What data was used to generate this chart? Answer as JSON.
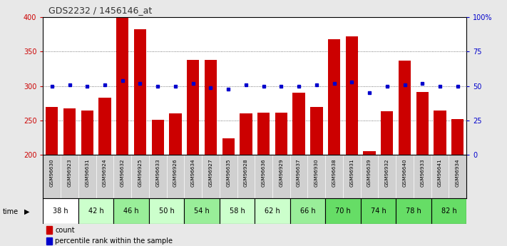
{
  "title": "GDS2232 / 1456146_at",
  "samples": [
    "GSM96630",
    "GSM96923",
    "GSM96631",
    "GSM96924",
    "GSM96632",
    "GSM96925",
    "GSM96633",
    "GSM96926",
    "GSM96634",
    "GSM96927",
    "GSM96635",
    "GSM96928",
    "GSM96636",
    "GSM96929",
    "GSM96637",
    "GSM96930",
    "GSM96638",
    "GSM96931",
    "GSM96639",
    "GSM96932",
    "GSM96640",
    "GSM96933",
    "GSM96641",
    "GSM96934"
  ],
  "time_groups": [
    {
      "label": "38 h",
      "cols": [
        0,
        1
      ],
      "color": "#ffffff"
    },
    {
      "label": "42 h",
      "cols": [
        2,
        3
      ],
      "color": "#ccffcc"
    },
    {
      "label": "46 h",
      "cols": [
        4,
        5
      ],
      "color": "#99ee99"
    },
    {
      "label": "50 h",
      "cols": [
        6,
        7
      ],
      "color": "#ccffcc"
    },
    {
      "label": "54 h",
      "cols": [
        8,
        9
      ],
      "color": "#99ee99"
    },
    {
      "label": "58 h",
      "cols": [
        10,
        11
      ],
      "color": "#ccffcc"
    },
    {
      "label": "62 h",
      "cols": [
        12,
        13
      ],
      "color": "#ccffcc"
    },
    {
      "label": "66 h",
      "cols": [
        14,
        15
      ],
      "color": "#99ee99"
    },
    {
      "label": "70 h",
      "cols": [
        16,
        17
      ],
      "color": "#66dd66"
    },
    {
      "label": "74 h",
      "cols": [
        18,
        19
      ],
      "color": "#66dd66"
    },
    {
      "label": "78 h",
      "cols": [
        20,
        21
      ],
      "color": "#66dd66"
    },
    {
      "label": "82 h",
      "cols": [
        22,
        23
      ],
      "color": "#66dd66"
    }
  ],
  "count_values": [
    270,
    268,
    265,
    283,
    400,
    383,
    251,
    260,
    338,
    338,
    224,
    260,
    261,
    261,
    290,
    270,
    368,
    372,
    206,
    263,
    337,
    291,
    265,
    252
  ],
  "percentile_values": [
    50,
    51,
    50,
    51,
    54,
    52,
    50,
    50,
    52,
    49,
    48,
    51,
    50,
    50,
    50,
    51,
    52,
    53,
    45,
    50,
    51,
    52,
    50,
    50
  ],
  "ymin": 200,
  "ymax": 400,
  "yticks_left": [
    200,
    250,
    300,
    350,
    400
  ],
  "pct_yticks": [
    0,
    25,
    50,
    75,
    100
  ],
  "bar_color": "#cc0000",
  "dot_color": "#0000cc",
  "sample_bg": "#d0d0d0",
  "fig_bg": "#e8e8e8",
  "plot_bg": "#ffffff"
}
